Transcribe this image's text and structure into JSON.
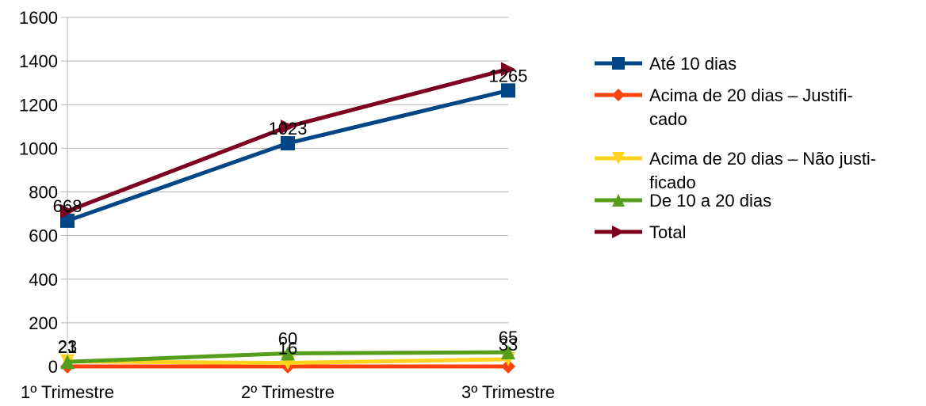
{
  "chart_data": {
    "type": "line",
    "title": "",
    "xlabel": "",
    "ylabel": "",
    "categories": [
      "1º Trimestre",
      "2º Trimestre",
      "3º Trimestre"
    ],
    "ylim": [
      0,
      1600
    ],
    "yticks": [
      0,
      200,
      400,
      600,
      800,
      1000,
      1200,
      1400,
      1600
    ],
    "grid": "horizontal",
    "legend_position": "right",
    "series": [
      {
        "name": "Até 10 dias",
        "values": [
          668,
          1023,
          1265
        ],
        "color": "#004586",
        "marker": "square",
        "labels": [
          "668",
          "1023",
          "1265"
        ]
      },
      {
        "name": "Acima de 20 dias – Justificado",
        "values": [
          0,
          0,
          0
        ],
        "color": "#ff420e",
        "marker": "diamond",
        "labels": [
          "",
          "",
          ""
        ]
      },
      {
        "name": "Acima de 20 dias – Não justificado",
        "values": [
          23,
          16,
          33
        ],
        "color": "#ffd320",
        "marker": "triangle-down",
        "labels": [
          "23",
          "16",
          "33"
        ]
      },
      {
        "name": "De 10 a 20 dias",
        "values": [
          21,
          60,
          65
        ],
        "color": "#579d1c",
        "marker": "triangle-up",
        "labels": [
          "21",
          "60",
          "65"
        ]
      },
      {
        "name": "Total",
        "values": [
          712,
          1099,
          1363
        ],
        "color": "#7e0021",
        "marker": "triangle-right",
        "labels": [
          "",
          "",
          ""
        ]
      }
    ],
    "legend_lines": [
      [
        "Até 10 dias"
      ],
      [
        "Acima de 20 dias –  Justifi-",
        "cado"
      ],
      [
        "Acima de 20 dias – Não justi-",
        "ficado"
      ],
      [
        "De 10 a 20 dias"
      ],
      [
        "Total"
      ]
    ]
  }
}
